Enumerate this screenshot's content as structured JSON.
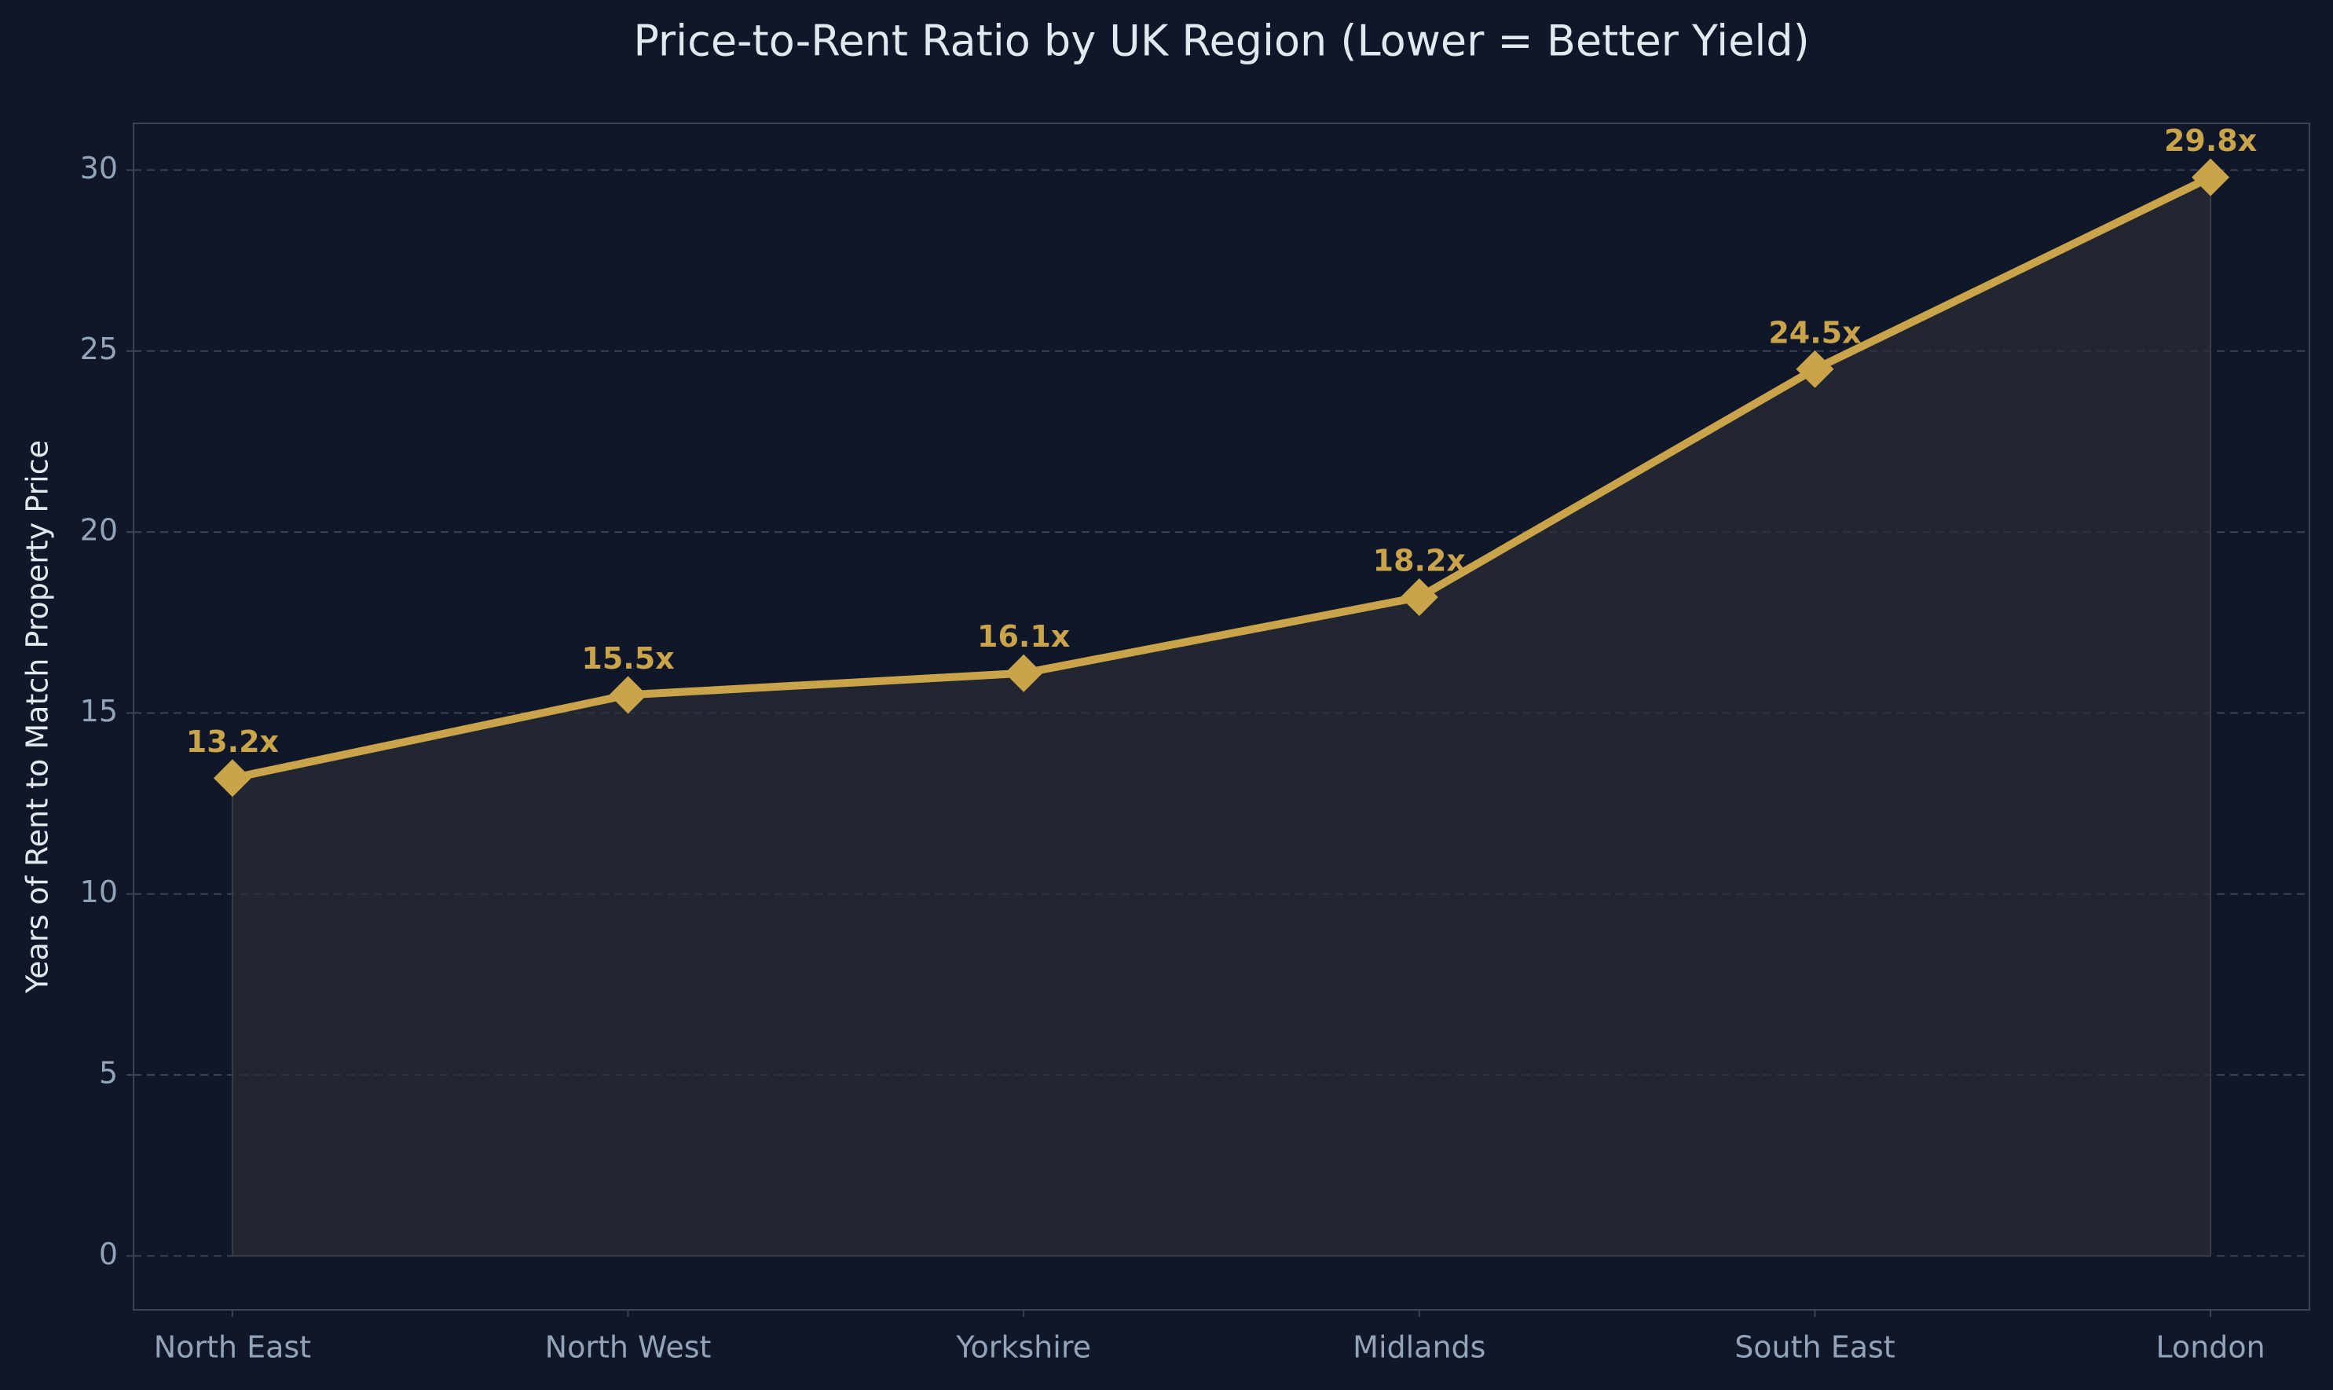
{
  "chart_data": {
    "type": "line",
    "title": "Price-to-Rent Ratio by UK Region (Lower = Better Yield)",
    "y_label": "Years of Rent to Match Property Price",
    "categories": [
      "North East",
      "North West",
      "Yorkshire",
      "Midlands",
      "South East",
      "London"
    ],
    "values": [
      13.2,
      15.5,
      16.1,
      18.2,
      24.5,
      29.8
    ],
    "value_labels": [
      "13.2x",
      "15.5x",
      "16.1x",
      "18.2x",
      "24.5x",
      "29.8x"
    ],
    "color": "#c9a44a",
    "ylim": [
      -1.49,
      31.29
    ],
    "yticks": [
      0,
      5,
      10,
      15,
      20,
      25,
      30
    ],
    "grid": true
  }
}
